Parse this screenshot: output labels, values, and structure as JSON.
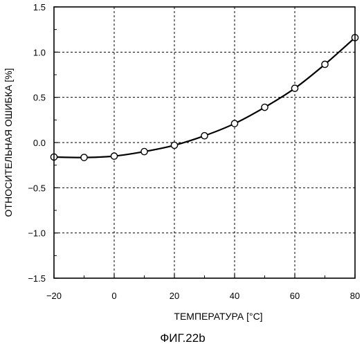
{
  "figure": {
    "caption": "ФИГ.22b"
  },
  "chart_data": {
    "type": "line",
    "xlabel": "ТЕМПЕРАТУРА [°C]",
    "ylabel": "ОТНОСИТЕЛЬНАЯ ОШИБКА [%]",
    "xlim": [
      -20,
      80
    ],
    "ylim": [
      -1.5,
      1.5
    ],
    "x_ticks": [
      -20,
      0,
      20,
      40,
      60,
      80
    ],
    "y_ticks": [
      -1.5,
      -1.0,
      -0.5,
      0.0,
      0.5,
      1.0,
      1.5
    ],
    "x_tick_labels": [
      "−20",
      "0",
      "20",
      "40",
      "60",
      "80"
    ],
    "y_tick_labels": [
      "−1.5",
      "−1.0",
      "−0.5",
      "0.0",
      "0.5",
      "1.0",
      "1.5"
    ],
    "grid": true,
    "grid_style": "dashed",
    "series": [
      {
        "marker": "open-circle",
        "x": [
          -20,
          -10,
          0,
          10,
          20,
          30,
          40,
          50,
          60,
          70,
          80
        ],
        "y": [
          -0.16,
          -0.165,
          -0.15,
          -0.1,
          -0.03,
          0.075,
          0.21,
          0.39,
          0.6,
          0.865,
          1.16
        ]
      }
    ]
  }
}
